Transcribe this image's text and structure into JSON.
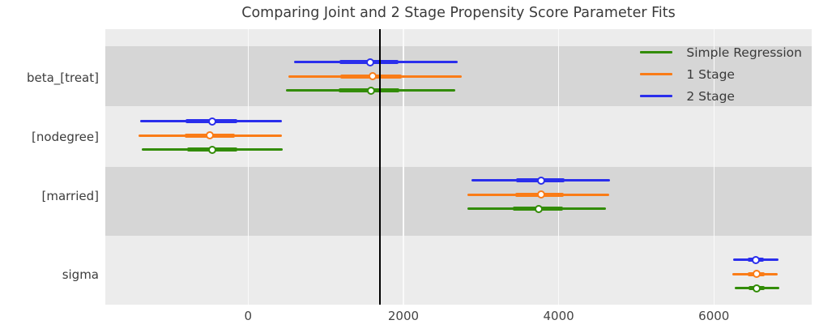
{
  "title": "Comparing Joint and 2 Stage Propensity Score Parameter Fits",
  "colors": {
    "two_stage": "#2a2eec",
    "one_stage": "#fa7c17",
    "simple_regression": "#328c06",
    "reference_line": "#000000",
    "plot_background": "#ececec",
    "band_shading": "#d6d6d6",
    "gridline": "#fafafa",
    "text": "#3a3a3a"
  },
  "legend": {
    "entries": [
      "Simple Regression",
      "1 Stage",
      "2 Stage"
    ],
    "position": "top-right"
  },
  "chart_data": {
    "type": "forest",
    "title": "Comparing Joint and 2 Stage Propensity Score Parameter Fits",
    "categories": [
      "beta_[treat]",
      "[nodegree]",
      "[married]",
      "sigma"
    ],
    "x_ticks": [
      0,
      2000,
      4000,
      6000
    ],
    "xlim": [
      -1840,
      7260
    ],
    "reference_line_x": 1700,
    "grid": "vertical-white",
    "legend_position": "top-right",
    "marker": "white-circle-median-with-50-and-94-intervals",
    "series": [
      {
        "name": "Simple Regression",
        "color": "#328c06",
        "values": [
          {
            "category": "beta_[treat]",
            "median": 1580,
            "hdi50": [
              1170,
              1950
            ],
            "hdi94": [
              490,
              2670
            ]
          },
          {
            "category": "[nodegree]",
            "median": -460,
            "hdi50": [
              -790,
              -140
            ],
            "hdi94": [
              -1370,
              450
            ]
          },
          {
            "category": "[married]",
            "median": 3740,
            "hdi50": [
              3410,
              4060
            ],
            "hdi94": [
              2820,
              4610
            ]
          },
          {
            "category": "sigma",
            "median": 6550,
            "hdi50": [
              6450,
              6660
            ],
            "hdi94": [
              6270,
              6840
            ]
          }
        ]
      },
      {
        "name": "1 Stage",
        "color": "#fa7c17",
        "values": [
          {
            "category": "beta_[treat]",
            "median": 1600,
            "hdi50": [
              1190,
              1980
            ],
            "hdi94": [
              520,
              2750
            ]
          },
          {
            "category": "[nodegree]",
            "median": -490,
            "hdi50": [
              -820,
              -170
            ],
            "hdi94": [
              -1410,
              430
            ]
          },
          {
            "category": "[married]",
            "median": 3770,
            "hdi50": [
              3440,
              4070
            ],
            "hdi94": [
              2830,
              4650
            ]
          },
          {
            "category": "sigma",
            "median": 6550,
            "hdi50": [
              6440,
              6650
            ],
            "hdi94": [
              6240,
              6820
            ]
          }
        ]
      },
      {
        "name": "2 Stage",
        "color": "#2a2eec",
        "values": [
          {
            "category": "beta_[treat]",
            "median": 1570,
            "hdi50": [
              1180,
              1940
            ],
            "hdi94": [
              590,
              2700
            ]
          },
          {
            "category": "[nodegree]",
            "median": -460,
            "hdi50": [
              -810,
              -140
            ],
            "hdi94": [
              -1390,
              440
            ]
          },
          {
            "category": "[married]",
            "median": 3770,
            "hdi50": [
              3450,
              4080
            ],
            "hdi94": [
              2880,
              4660
            ]
          },
          {
            "category": "sigma",
            "median": 6540,
            "hdi50": [
              6440,
              6640
            ],
            "hdi94": [
              6250,
              6830
            ]
          }
        ]
      }
    ]
  }
}
